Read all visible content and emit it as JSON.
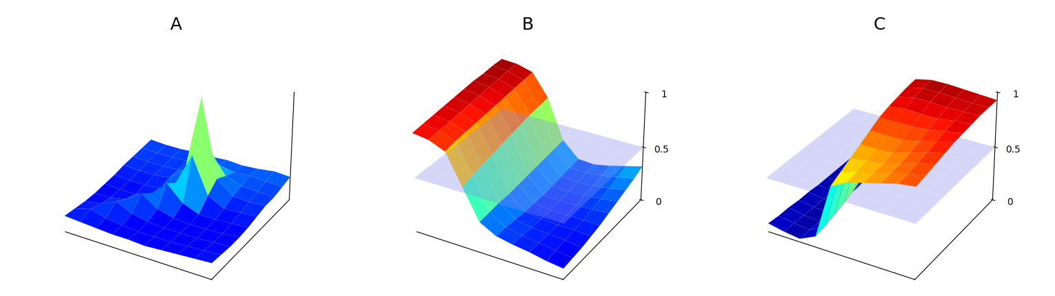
{
  "chart_data": [
    {
      "type": "surface",
      "title": "A",
      "tick_labels": false,
      "grid": false,
      "zlim": [
        0,
        1
      ],
      "z": [
        [
          0.15,
          0.14,
          0.13,
          0.12,
          0.12,
          0.11,
          0.12,
          0.13,
          0.14,
          0.15
        ],
        [
          0.14,
          0.18,
          0.14,
          0.12,
          0.11,
          0.11,
          0.11,
          0.12,
          0.13,
          0.14
        ],
        [
          0.13,
          0.15,
          0.22,
          0.15,
          0.12,
          0.11,
          0.11,
          0.11,
          0.12,
          0.13
        ],
        [
          0.13,
          0.13,
          0.16,
          0.26,
          0.16,
          0.12,
          0.11,
          0.11,
          0.12,
          0.13
        ],
        [
          0.14,
          0.13,
          0.13,
          0.18,
          0.32,
          0.18,
          0.12,
          0.12,
          0.13,
          0.14
        ],
        [
          0.15,
          0.14,
          0.14,
          0.15,
          0.25,
          0.55,
          0.22,
          0.14,
          0.15,
          0.16
        ],
        [
          0.17,
          0.16,
          0.16,
          0.18,
          0.3,
          1.0,
          0.3,
          0.18,
          0.17,
          0.18
        ],
        [
          0.18,
          0.17,
          0.17,
          0.18,
          0.22,
          0.45,
          0.25,
          0.2,
          0.19,
          0.18
        ],
        [
          0.19,
          0.18,
          0.18,
          0.19,
          0.2,
          0.24,
          0.21,
          0.22,
          0.21,
          0.2
        ],
        [
          0.2,
          0.19,
          0.19,
          0.2,
          0.2,
          0.21,
          0.2,
          0.21,
          0.23,
          0.22
        ]
      ]
    },
    {
      "type": "surface",
      "title": "B",
      "grid": false,
      "zlim": [
        0,
        1
      ],
      "zticks": [
        0,
        0.5,
        1
      ],
      "plane": 0.5,
      "z": [
        [
          0.9,
          0.88,
          0.82,
          0.55,
          0.28,
          0.2,
          0.17,
          0.15,
          0.12,
          0.1
        ],
        [
          0.91,
          0.89,
          0.84,
          0.58,
          0.29,
          0.2,
          0.17,
          0.15,
          0.13,
          0.11
        ],
        [
          0.92,
          0.9,
          0.85,
          0.6,
          0.3,
          0.19,
          0.16,
          0.15,
          0.14,
          0.12
        ],
        [
          0.93,
          0.91,
          0.86,
          0.62,
          0.3,
          0.18,
          0.16,
          0.15,
          0.15,
          0.14
        ],
        [
          0.94,
          0.92,
          0.87,
          0.64,
          0.31,
          0.18,
          0.16,
          0.16,
          0.16,
          0.16
        ],
        [
          0.95,
          0.93,
          0.88,
          0.66,
          0.32,
          0.18,
          0.17,
          0.17,
          0.18,
          0.19
        ],
        [
          0.96,
          0.94,
          0.89,
          0.68,
          0.33,
          0.19,
          0.18,
          0.19,
          0.2,
          0.22
        ],
        [
          0.96,
          0.95,
          0.9,
          0.7,
          0.34,
          0.2,
          0.19,
          0.2,
          0.22,
          0.25
        ],
        [
          0.97,
          0.96,
          0.91,
          0.71,
          0.35,
          0.21,
          0.2,
          0.22,
          0.25,
          0.28
        ],
        [
          0.97,
          0.96,
          0.92,
          0.72,
          0.36,
          0.22,
          0.21,
          0.24,
          0.28,
          0.32
        ]
      ]
    },
    {
      "type": "surface",
      "title": "C",
      "grid": false,
      "zlim": [
        0,
        1
      ],
      "zticks": [
        0,
        0.5,
        1
      ],
      "plane": 0.5,
      "z": [
        [
          0.08,
          0.05,
          0.03,
          0.1,
          0.6,
          0.68,
          0.72,
          0.76,
          0.8,
          0.82
        ],
        [
          0.07,
          0.05,
          0.03,
          0.12,
          0.65,
          0.7,
          0.73,
          0.77,
          0.81,
          0.84
        ],
        [
          0.07,
          0.04,
          0.03,
          0.15,
          0.7,
          0.72,
          0.74,
          0.78,
          0.83,
          0.86
        ],
        [
          0.06,
          0.04,
          0.03,
          0.18,
          0.75,
          0.75,
          0.76,
          0.8,
          0.85,
          0.88
        ],
        [
          0.06,
          0.04,
          0.03,
          0.22,
          0.8,
          0.8,
          0.8,
          0.83,
          0.87,
          0.9
        ],
        [
          0.05,
          0.04,
          0.04,
          0.28,
          0.85,
          0.85,
          0.85,
          0.86,
          0.89,
          0.91
        ],
        [
          0.05,
          0.04,
          0.04,
          0.32,
          0.88,
          0.9,
          0.89,
          0.89,
          0.91,
          0.92
        ],
        [
          0.05,
          0.04,
          0.05,
          0.36,
          0.9,
          0.93,
          0.93,
          0.92,
          0.92,
          0.93
        ],
        [
          0.05,
          0.05,
          0.06,
          0.4,
          0.92,
          0.95,
          0.95,
          0.94,
          0.93,
          0.93
        ],
        [
          0.05,
          0.05,
          0.07,
          0.44,
          0.93,
          0.96,
          0.96,
          0.95,
          0.94,
          0.93
        ]
      ]
    }
  ]
}
